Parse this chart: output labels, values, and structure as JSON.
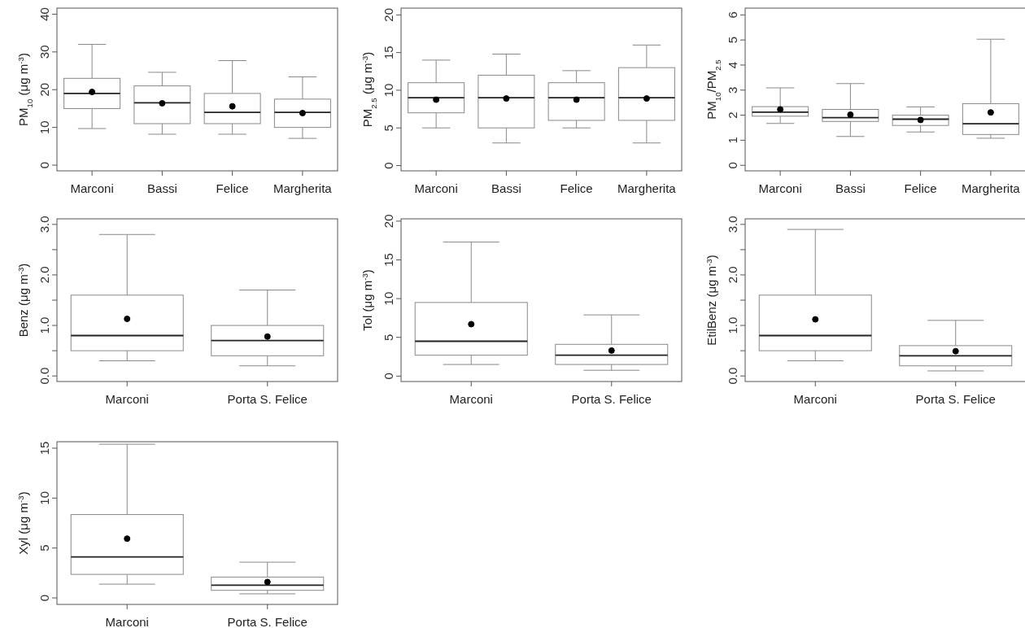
{
  "chart_data": [
    {
      "type": "box",
      "ylabel": "PM$_{10}$ (μg m$^{-3}$)",
      "categories": [
        "Marconi",
        "Bassi",
        "Felice",
        "Margherita"
      ],
      "ylim": [
        -1.5,
        41.6
      ],
      "yticks": [
        0,
        10,
        20,
        30,
        40
      ],
      "boxes": [
        {
          "low": 9.7,
          "q1": 15,
          "median": 19,
          "q3": 23,
          "high": 32,
          "mean": 19.4
        },
        {
          "low": 8.2,
          "q1": 11,
          "median": 16.5,
          "q3": 21,
          "high": 24.6,
          "mean": 16.4
        },
        {
          "low": 8.2,
          "q1": 11,
          "median": 14,
          "q3": 19,
          "high": 27.7,
          "mean": 15.6
        },
        {
          "low": 7.1,
          "q1": 10,
          "median": 14,
          "q3": 17.5,
          "high": 23.4,
          "mean": 13.8
        }
      ]
    },
    {
      "type": "box",
      "ylabel": "PM$_{2.5}$ (μg m$^{-3}$)",
      "categories": [
        "Marconi",
        "Bassi",
        "Felice",
        "Margherita"
      ],
      "ylim": [
        -0.7,
        20.9
      ],
      "yticks": [
        0,
        5,
        10,
        15,
        20
      ],
      "boxes": [
        {
          "low": 5,
          "q1": 7,
          "median": 9,
          "q3": 11,
          "high": 14,
          "mean": 8.75
        },
        {
          "low": 3,
          "q1": 5,
          "median": 9,
          "q3": 12,
          "high": 14.8,
          "mean": 8.9
        },
        {
          "low": 5,
          "q1": 6,
          "median": 9,
          "q3": 11,
          "high": 12.6,
          "mean": 8.75
        },
        {
          "low": 3,
          "q1": 6,
          "median": 9,
          "q3": 13,
          "high": 16,
          "mean": 8.9
        }
      ]
    },
    {
      "type": "box",
      "ylabel": "PM$_{10}$/PM$_{2.5}$",
      "categories": [
        "Marconi",
        "Bassi",
        "Felice",
        "Margherita"
      ],
      "ylim": [
        -0.22,
        6.27
      ],
      "yticks": [
        0,
        1,
        2,
        3,
        4,
        5,
        6
      ],
      "boxes": [
        {
          "low": 1.67,
          "q1": 1.96,
          "median": 2.12,
          "q3": 2.34,
          "high": 3.09,
          "mean": 2.23
        },
        {
          "low": 1.15,
          "q1": 1.75,
          "median": 1.9,
          "q3": 2.23,
          "high": 3.26,
          "mean": 2.02
        },
        {
          "low": 1.33,
          "q1": 1.59,
          "median": 1.84,
          "q3": 2.0,
          "high": 2.33,
          "mean": 1.81
        },
        {
          "low": 1.08,
          "q1": 1.23,
          "median": 1.66,
          "q3": 2.46,
          "high": 5.03,
          "mean": 2.11
        }
      ]
    },
    {
      "type": "box",
      "ylabel": "Benz (μg m$^{-3}$)",
      "categories": [
        "Marconi",
        "Porta S. Felice"
      ],
      "ylim": [
        -0.11,
        3.11
      ],
      "yticks": [
        {
          "value": 0,
          "label": "0.0"
        },
        {
          "value": 0.5,
          "label": null
        },
        {
          "value": 1,
          "label": "1.0"
        },
        {
          "value": 1.5,
          "label": null
        },
        {
          "value": 2,
          "label": "2.0"
        },
        {
          "value": 2.5,
          "label": null
        },
        {
          "value": 3,
          "label": "3.0"
        }
      ],
      "boxes": [
        {
          "low": 0.3,
          "q1": 0.5,
          "median": 0.8,
          "q3": 1.6,
          "high": 2.8,
          "mean": 1.13
        },
        {
          "low": 0.2,
          "q1": 0.4,
          "median": 0.7,
          "q3": 1.0,
          "high": 1.7,
          "mean": 0.78
        }
      ]
    },
    {
      "type": "box",
      "ylabel": "Tol (μg m$^{-3}$)",
      "categories": [
        "Marconi",
        "Porta S. Felice"
      ],
      "ylim": [
        -0.7,
        20.3
      ],
      "yticks": [
        0,
        5,
        10,
        15,
        20
      ],
      "boxes": [
        {
          "low": 1.5,
          "q1": 2.7,
          "median": 4.5,
          "q3": 9.5,
          "high": 17.3,
          "mean": 6.7
        },
        {
          "low": 0.75,
          "q1": 1.5,
          "median": 2.7,
          "q3": 4.1,
          "high": 7.9,
          "mean": 3.3
        }
      ]
    },
    {
      "type": "box",
      "ylabel": "EtilBenz (μg m$^{-3}$)",
      "categories": [
        "Marconi",
        "Porta S. Felice"
      ],
      "ylim": [
        -0.11,
        3.11
      ],
      "yticks": [
        {
          "value": 0,
          "label": "0.0"
        },
        {
          "value": 0.5,
          "label": null
        },
        {
          "value": 1,
          "label": "1.0"
        },
        {
          "value": 1.5,
          "label": null
        },
        {
          "value": 2,
          "label": "2.0"
        },
        {
          "value": 2.5,
          "label": null
        },
        {
          "value": 3,
          "label": "3.0"
        }
      ],
      "boxes": [
        {
          "low": 0.3,
          "q1": 0.5,
          "median": 0.8,
          "q3": 1.6,
          "high": 2.9,
          "mean": 1.12
        },
        {
          "low": 0.1,
          "q1": 0.2,
          "median": 0.4,
          "q3": 0.6,
          "high": 1.1,
          "mean": 0.49
        }
      ]
    },
    {
      "type": "box",
      "ylabel": "Xyl (μg m$^{-3}$)",
      "categories": [
        "Marconi",
        "Porta S. Felice"
      ],
      "ylim": [
        -0.65,
        15.65
      ],
      "yticks": [
        0,
        5,
        10,
        15
      ],
      "boxes": [
        {
          "low": 1.38,
          "q1": 2.36,
          "median": 4.1,
          "q3": 8.35,
          "high": 15.4,
          "mean": 5.94
        },
        {
          "low": 0.41,
          "q1": 0.76,
          "median": 1.27,
          "q3": 2.09,
          "high": 3.58,
          "mean": 1.6
        }
      ]
    }
  ]
}
